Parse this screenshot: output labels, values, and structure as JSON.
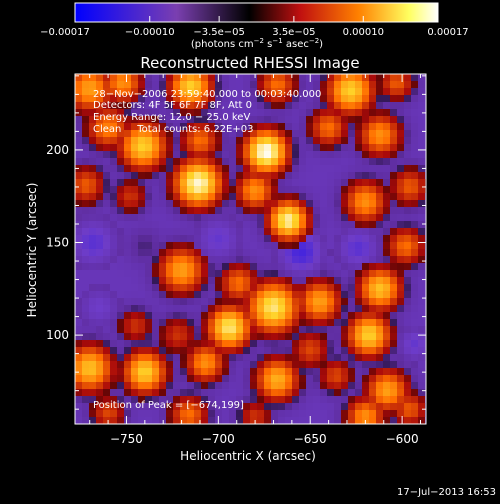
{
  "chart_data": {
    "type": "heatmap",
    "title": "Reconstructed RHESSI Image",
    "xlabel": "Heliocentric X (arcsec)",
    "ylabel": "Heliocentric Y (arcsec)",
    "xlim": [
      -778,
      -587
    ],
    "ylim": [
      52,
      241
    ],
    "x_ticks": [
      -750,
      -700,
      -650,
      -600
    ],
    "x_tick_labels": [
      "−750",
      "−700",
      "−650",
      "−600"
    ],
    "y_ticks": [
      100,
      150,
      200
    ],
    "y_tick_labels": [
      "100",
      "150",
      "200"
    ],
    "colorbar": {
      "range": [
        -0.00017,
        0.00017
      ],
      "ticks": [
        -0.00017,
        -0.0001,
        -3.5e-05,
        3.5e-05,
        0.0001,
        0.00017
      ],
      "tick_labels": [
        "−0.00017",
        "−0.00010",
        "−3.5e−05",
        "3.5e−05",
        "0.00010",
        "0.00017"
      ],
      "unit_label": {
        "text": "(photons cm",
        "sup1": "−2",
        "mid": " s",
        "sup2": "−1",
        "mid2": " asec",
        "sup3": "−2",
        "end": ")"
      }
    },
    "info_lines": [
      "28−Nov−2006 23:59:40.000 to 00:03:40.000",
      "Detectors: 4F 5F 6F 7F 8F, Att 0",
      "Energy Range: 12.0 − 25.0 keV",
      "Clean     Total counts: 6.22E+03"
    ],
    "peak_text": "Position of Peak = [−674,199]",
    "peak_position": [
      -674,
      199
    ],
    "grid": false,
    "note_values": "approximate blob map of intensity in colorbar units; value = level * 0.00017",
    "blobs": [
      [
        -770,
        233,
        0.6,
        12
      ],
      [
        -752,
        236,
        0.55,
        10
      ],
      [
        -715,
        234,
        0.75,
        11
      ],
      [
        -668,
        235,
        0.45,
        10
      ],
      [
        -628,
        232,
        0.75,
        12
      ],
      [
        -603,
        236,
        0.4,
        9
      ],
      [
        -760,
        212,
        0.5,
        11
      ],
      [
        -741,
        202,
        0.75,
        12
      ],
      [
        -710,
        205,
        0.45,
        10
      ],
      [
        -674,
        199,
        1.0,
        11
      ],
      [
        -640,
        212,
        0.45,
        10
      ],
      [
        -612,
        208,
        0.55,
        11
      ],
      [
        -772,
        181,
        0.4,
        10
      ],
      [
        -748,
        175,
        0.3,
        9
      ],
      [
        -711,
        182,
        0.95,
        12
      ],
      [
        -680,
        178,
        0.55,
        10
      ],
      [
        -662,
        162,
        0.9,
        10
      ],
      [
        -620,
        172,
        0.55,
        11
      ],
      [
        -596,
        180,
        0.4,
        10
      ],
      [
        -768,
        150,
        -0.45,
        14
      ],
      [
        -740,
        148,
        0.1,
        10
      ],
      [
        -700,
        152,
        -0.4,
        13
      ],
      [
        -655,
        145,
        -0.55,
        13
      ],
      [
        -624,
        147,
        -0.45,
        12
      ],
      [
        -598,
        148,
        0.45,
        10
      ],
      [
        -720,
        135,
        0.6,
        12
      ],
      [
        -689,
        128,
        0.45,
        10
      ],
      [
        -670,
        115,
        0.85,
        13
      ],
      [
        -645,
        118,
        0.6,
        11
      ],
      [
        -612,
        125,
        0.7,
        11
      ],
      [
        -765,
        115,
        -0.35,
        12
      ],
      [
        -745,
        105,
        0.3,
        9
      ],
      [
        -722,
        100,
        0.3,
        10
      ],
      [
        -694,
        104,
        0.85,
        11
      ],
      [
        -650,
        92,
        0.35,
        10
      ],
      [
        -618,
        100,
        0.75,
        11
      ],
      [
        -593,
        95,
        -0.4,
        10
      ],
      [
        -770,
        82,
        0.7,
        12
      ],
      [
        -740,
        80,
        0.75,
        11
      ],
      [
        -707,
        85,
        0.55,
        10
      ],
      [
        -668,
        76,
        0.65,
        11
      ],
      [
        -636,
        78,
        0.35,
        9
      ],
      [
        -608,
        70,
        0.6,
        11
      ],
      [
        -760,
        58,
        0.35,
        9
      ],
      [
        -716,
        57,
        0.45,
        10
      ],
      [
        -680,
        56,
        0.3,
        9
      ],
      [
        -620,
        56,
        0.55,
        10
      ],
      [
        -596,
        60,
        0.4,
        9
      ]
    ],
    "background_level": -0.12
  },
  "footer": {
    "date": "17−Jul−2013 16:53"
  },
  "colors": {
    "background": "#000000",
    "text": "#ffffff",
    "colormap": [
      "#0000ff",
      "#5b34c8",
      "#7a3fb0",
      "#000000",
      "#c01010",
      "#ff8000",
      "#ffff60",
      "#ffffff"
    ]
  }
}
